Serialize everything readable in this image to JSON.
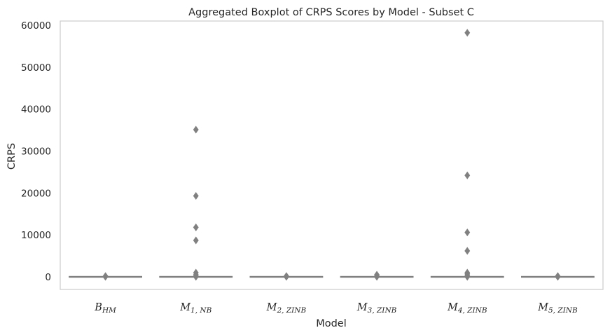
{
  "chart_data": {
    "type": "box",
    "title": "Aggregated Boxplot of CRPS Scores by Model - Subset C",
    "xlabel": "Model",
    "ylabel": "CRPS",
    "ylim": [
      -3000,
      61000
    ],
    "yticks": [
      0,
      10000,
      20000,
      30000,
      40000,
      50000,
      60000
    ],
    "grid": false,
    "categories": [
      {
        "main": "B",
        "sub": "HM"
      },
      {
        "main": "M",
        "sub": "1, NB"
      },
      {
        "main": "M",
        "sub": "2, ZINB"
      },
      {
        "main": "M",
        "sub": "3, ZINB"
      },
      {
        "main": "M",
        "sub": "4, ZINB"
      },
      {
        "main": "M",
        "sub": "5, ZINB"
      }
    ],
    "series": [
      {
        "q1": 0,
        "median": 0,
        "q3": 0,
        "whisker_low": 0,
        "whisker_high": 0,
        "outliers": [
          0,
          100,
          200
        ]
      },
      {
        "q1": 0,
        "median": 0,
        "q3": 0,
        "whisker_low": 0,
        "whisker_high": 0,
        "outliers": [
          0,
          200,
          500,
          1000,
          8700,
          11800,
          19300,
          35100
        ]
      },
      {
        "q1": 0,
        "median": 0,
        "q3": 0,
        "whisker_low": 0,
        "whisker_high": 0,
        "outliers": [
          0,
          100,
          200
        ]
      },
      {
        "q1": 0,
        "median": 0,
        "q3": 0,
        "whisker_low": 0,
        "whisker_high": 0,
        "outliers": [
          0,
          200,
          500
        ]
      },
      {
        "q1": 0,
        "median": 0,
        "q3": 0,
        "whisker_low": 0,
        "whisker_high": 0,
        "outliers": [
          0,
          300,
          700,
          1000,
          6200,
          10600,
          24200,
          58200
        ]
      },
      {
        "q1": 0,
        "median": 0,
        "q3": 0,
        "whisker_low": 0,
        "whisker_high": 0,
        "outliers": [
          0,
          100,
          200
        ]
      }
    ],
    "colors": {
      "box_fill": "#4c72b0",
      "box_edge": "#808080",
      "outlier": "#808080",
      "axes_edge": "#cccccc",
      "text": "#262626"
    }
  }
}
